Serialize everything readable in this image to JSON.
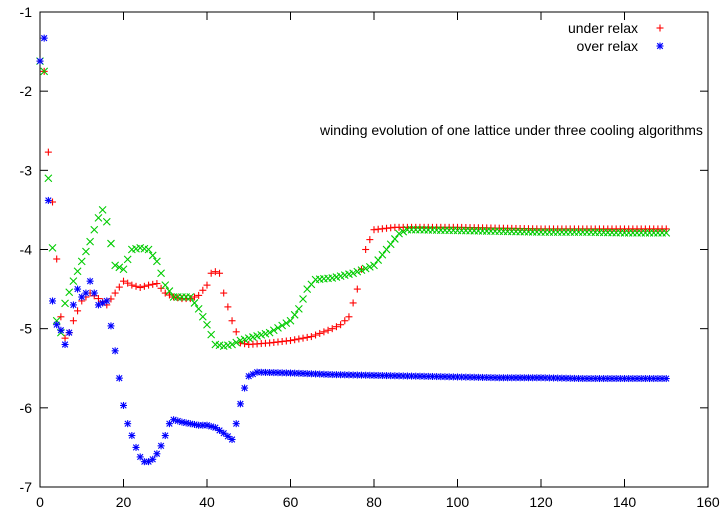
{
  "chart_data": {
    "type": "scatter",
    "title": "",
    "xlabel": "",
    "ylabel": "",
    "xlim": [
      0,
      160
    ],
    "ylim": [
      -7,
      -1
    ],
    "xticks": [
      0,
      20,
      40,
      60,
      80,
      100,
      120,
      140,
      160
    ],
    "yticks": [
      -7,
      -6,
      -5,
      -4,
      -3,
      -2,
      -1
    ],
    "grid": false,
    "legend_position": "top-right",
    "annotation": "winding evolution of one lattice under three cooling algorithms",
    "series": [
      {
        "name": "under relax",
        "color": "#ff0000",
        "marker": "plus",
        "x": [
          0,
          1,
          2,
          3,
          4,
          5,
          6,
          7,
          8,
          10,
          12,
          14,
          16,
          18,
          20,
          22,
          24,
          26,
          28,
          30,
          32,
          34,
          36,
          38,
          40,
          41,
          42,
          43,
          44,
          46,
          48,
          50,
          55,
          60,
          65,
          70,
          72,
          74,
          76,
          78,
          80,
          85,
          90,
          100,
          110,
          120,
          130,
          140,
          150
        ],
        "y": [
          -1.62,
          -1.75,
          -2.77,
          -3.4,
          -4.12,
          -4.85,
          -5.12,
          -5.05,
          -4.9,
          -4.65,
          -4.55,
          -4.62,
          -4.7,
          -4.55,
          -4.4,
          -4.45,
          -4.48,
          -4.45,
          -4.43,
          -4.55,
          -4.6,
          -4.62,
          -4.62,
          -4.58,
          -4.45,
          -4.3,
          -4.28,
          -4.3,
          -4.55,
          -4.9,
          -5.18,
          -5.2,
          -5.18,
          -5.15,
          -5.1,
          -5.0,
          -4.95,
          -4.85,
          -4.5,
          -4.0,
          -3.75,
          -3.72,
          -3.72,
          -3.72,
          -3.73,
          -3.74,
          -3.74,
          -3.74,
          -3.74
        ]
      },
      {
        "name": "",
        "color": "#00cc00",
        "marker": "cross",
        "x": [
          0,
          1,
          2,
          3,
          4,
          5,
          6,
          8,
          10,
          12,
          14,
          15,
          16,
          18,
          20,
          22,
          24,
          26,
          28,
          30,
          32,
          34,
          36,
          38,
          40,
          42,
          44,
          46,
          48,
          50,
          55,
          60,
          62,
          64,
          66,
          68,
          70,
          75,
          80,
          83,
          86,
          88,
          90,
          100,
          110,
          120,
          130,
          140,
          150
        ],
        "y": [
          -1.62,
          -1.75,
          -3.1,
          -3.98,
          -4.9,
          -5.05,
          -4.68,
          -4.4,
          -4.15,
          -3.9,
          -3.6,
          -3.5,
          -3.65,
          -4.2,
          -4.25,
          -4.0,
          -3.98,
          -4.0,
          -4.15,
          -4.45,
          -4.6,
          -4.6,
          -4.6,
          -4.75,
          -4.95,
          -5.2,
          -5.22,
          -5.2,
          -5.15,
          -5.12,
          -5.05,
          -4.9,
          -4.75,
          -4.5,
          -4.38,
          -4.37,
          -4.36,
          -4.3,
          -4.2,
          -4.0,
          -3.8,
          -3.75,
          -3.75,
          -3.76,
          -3.77,
          -3.78,
          -3.78,
          -3.79,
          -3.79
        ]
      },
      {
        "name": "over relax",
        "color": "#0000ff",
        "marker": "star",
        "x": [
          0,
          1,
          2,
          3,
          4,
          5,
          6,
          7,
          8,
          9,
          10,
          11,
          12,
          14,
          16,
          18,
          20,
          21,
          22,
          23,
          24,
          25,
          26,
          27,
          28,
          29,
          30,
          31,
          32,
          34,
          36,
          38,
          40,
          42,
          44,
          46,
          47,
          48,
          49,
          50,
          52,
          60,
          70,
          80,
          90,
          100,
          110,
          120,
          130,
          140,
          150
        ],
        "y": [
          -1.62,
          -1.33,
          -3.38,
          -4.65,
          -4.95,
          -5.02,
          -5.2,
          -5.05,
          -4.7,
          -4.5,
          -4.6,
          -4.55,
          -4.4,
          -4.7,
          -4.65,
          -5.28,
          -5.97,
          -6.2,
          -6.35,
          -6.5,
          -6.62,
          -6.68,
          -6.68,
          -6.65,
          -6.58,
          -6.48,
          -6.35,
          -6.2,
          -6.15,
          -6.18,
          -6.2,
          -6.22,
          -6.22,
          -6.25,
          -6.32,
          -6.4,
          -6.2,
          -5.95,
          -5.75,
          -5.6,
          -5.55,
          -5.56,
          -5.58,
          -5.59,
          -5.6,
          -5.61,
          -5.62,
          -5.62,
          -5.63,
          -5.63,
          -5.63
        ]
      }
    ]
  }
}
